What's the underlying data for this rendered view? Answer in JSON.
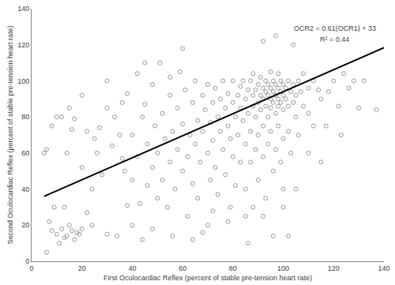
{
  "chart_data": {
    "type": "scatter",
    "xlabel": "First Oculocardiac Reflex (percent of stable pre-tension heart rate)",
    "ylabel": "Second Oculocardiac Reflex (percent of stable pre-tension heart rate)",
    "xlim": [
      0,
      140
    ],
    "ylim": [
      0,
      140
    ],
    "xticks": [
      0,
      20,
      40,
      60,
      80,
      100,
      120,
      140
    ],
    "yticks": [
      0,
      20,
      40,
      60,
      80,
      100,
      120,
      140
    ],
    "grid": false,
    "annotations": [
      "OCR2 = 0.61(OCR1) + 33",
      "R² = 0.44"
    ],
    "series": [
      {
        "type": "scatter",
        "marker": "circle-open",
        "color": "#7f7f7f",
        "x": [
          7,
          8,
          10,
          12,
          14,
          15,
          16,
          17,
          18,
          19,
          20,
          11,
          13,
          6,
          9,
          13,
          22,
          24,
          5,
          6,
          8,
          10,
          12,
          14,
          16,
          15,
          17,
          20,
          22,
          25,
          27,
          28,
          30,
          30,
          32,
          33,
          35,
          36,
          37,
          38,
          38,
          40,
          40,
          42,
          43,
          44,
          45,
          46,
          46,
          48,
          48,
          49,
          50,
          50,
          51,
          52,
          52,
          53,
          54,
          55,
          55,
          56,
          57,
          58,
          58,
          59,
          60,
          60,
          61,
          62,
          62,
          63,
          64,
          64,
          65,
          65,
          66,
          66,
          67,
          68,
          68,
          69,
          70,
          70,
          70,
          71,
          71,
          72,
          72,
          73,
          73,
          74,
          74,
          75,
          75,
          76,
          76,
          77,
          77,
          78,
          78,
          79,
          79,
          80,
          80,
          80,
          81,
          81,
          82,
          82,
          83,
          83,
          83,
          84,
          84,
          85,
          85,
          85,
          86,
          86,
          87,
          87,
          87,
          88,
          88,
          88,
          89,
          89,
          89,
          90,
          90,
          90,
          90,
          91,
          91,
          91,
          92,
          92,
          92,
          92,
          93,
          93,
          93,
          93,
          94,
          94,
          94,
          94,
          95,
          95,
          95,
          95,
          95,
          96,
          96,
          96,
          96,
          97,
          97,
          97,
          97,
          98,
          98,
          98,
          98,
          98,
          99,
          99,
          99,
          99,
          100,
          100,
          100,
          100,
          100,
          101,
          101,
          102,
          102,
          102,
          103,
          103,
          104,
          104,
          105,
          105,
          106,
          106,
          107,
          108,
          108,
          110,
          110,
          112,
          112,
          114,
          115,
          117,
          118,
          120,
          122,
          123,
          124,
          126,
          128,
          130,
          132,
          137,
          97,
          92,
          104,
          60,
          55,
          45,
          42,
          36,
          30,
          20,
          24,
          26,
          34,
          40,
          44,
          48,
          56,
          64,
          68,
          72,
          78,
          85,
          92,
          88,
          100,
          105,
          110,
          115,
          86,
          96,
          102
        ],
        "values": [
          22,
          17,
          15,
          18,
          14,
          20,
          17,
          12,
          16,
          15,
          18,
          10,
          13,
          5,
          30,
          30,
          27,
          20,
          60,
          62,
          75,
          80,
          80,
          60,
          73,
          85,
          79,
          92,
          72,
          68,
          74,
          48,
          15,
          85,
          64,
          80,
          70,
          57,
          50,
          31,
          93,
          45,
          70,
          58,
          32,
          80,
          87,
          42,
          65,
          52,
          98,
          75,
          35,
          60,
          110,
          45,
          82,
          68,
          30,
          92,
          55,
          72,
          40,
          62,
          85,
          105,
          50,
          76,
          95,
          25,
          58,
          70,
          88,
          43,
          100,
          65,
          78,
          35,
          55,
          92,
          72,
          84,
          20,
          60,
          98,
          45,
          77,
          88,
          67,
          52,
          96,
          80,
          37,
          72,
          90,
          62,
          100,
          85,
          48,
          75,
          93,
          68,
          30,
          88,
          58,
          100,
          80,
          42,
          92,
          70,
          97,
          85,
          55,
          78,
          100,
          90,
          65,
          40,
          95,
          82,
          100,
          72,
          55,
          92,
          86,
          104,
          80,
          95,
          62,
          98,
          88,
          70,
          45,
          102,
          92,
          84,
          96,
          90,
          75,
          58,
          100,
          94,
          86,
          35,
          98,
          92,
          80,
          65,
          105,
          96,
          90,
          85,
          72,
          100,
          94,
          88,
          50,
          98,
          92,
          82,
          62,
          104,
          96,
          90,
          86,
          75,
          100,
          94,
          88,
          55,
          98,
          92,
          84,
          68,
          40,
          96,
          90,
          100,
          86,
          72,
          94,
          60,
          98,
          88,
          92,
          80,
          100,
          70,
          94,
          86,
          104,
          96,
          82,
          100,
          75,
          95,
          90,
          75,
          94,
          100,
          86,
          70,
          104,
          96,
          100,
          85,
          100,
          84,
          125,
          122,
          120,
          118,
          102,
          110,
          104,
          88,
          100,
          52,
          40,
          60,
          14,
          20,
          12,
          18,
          14,
          12,
          16,
          28,
          22,
          25,
          25,
          30,
          30,
          40,
          60,
          55,
          10,
          14,
          14
        ]
      },
      {
        "type": "line",
        "line_style": "solid",
        "color": "#000000",
        "x": [
          5,
          140
        ],
        "values": [
          36.05,
          118.4
        ]
      }
    ]
  }
}
